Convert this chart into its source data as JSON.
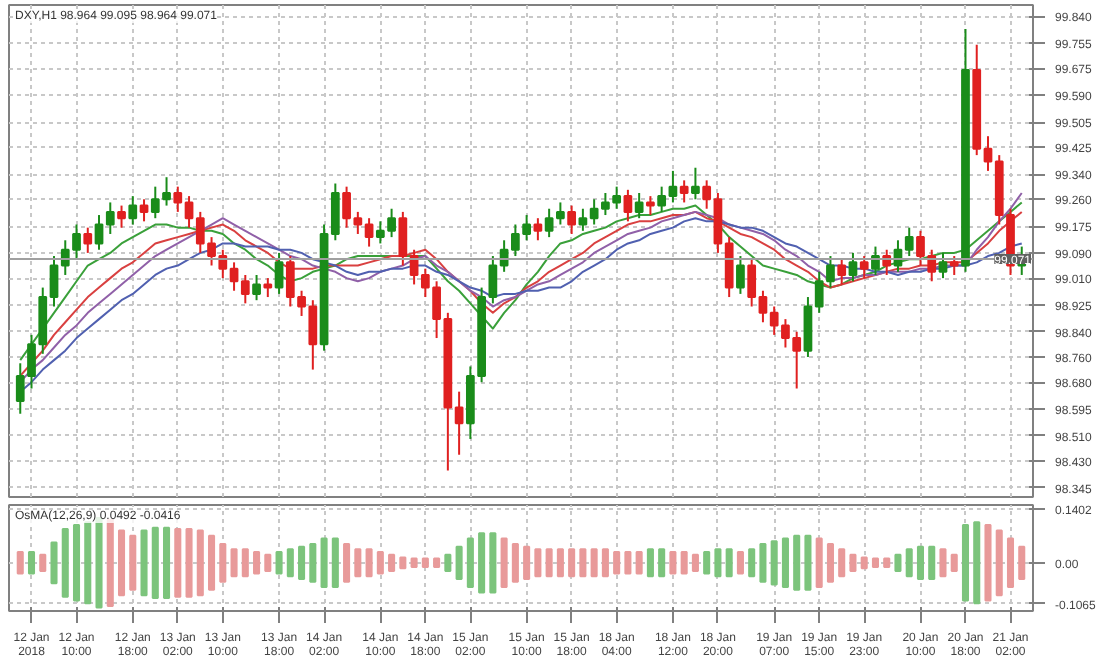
{
  "chart_data": [
    {
      "type": "candlestick",
      "title": "DXY,H1 98.964 99.095 98.964 99.071",
      "categories": [
        null,
        null,
        null,
        null,
        null,
        null,
        null,
        null,
        null,
        null,
        null,
        null,
        null,
        null,
        null,
        null,
        null,
        null,
        null,
        null,
        null,
        null,
        null,
        null,
        null,
        null,
        null,
        null,
        null,
        null,
        null,
        null,
        null,
        null,
        null,
        null,
        null,
        null,
        null,
        null,
        null,
        null,
        null,
        null,
        null,
        null,
        null,
        null,
        null,
        null,
        null,
        null,
        null,
        null,
        null,
        null,
        null,
        null,
        null,
        null,
        null,
        null,
        null,
        null,
        null,
        null,
        null,
        null,
        null,
        null,
        null,
        null,
        null,
        null,
        null,
        null,
        null,
        null,
        null,
        null,
        null,
        null,
        null,
        null,
        null,
        null,
        null,
        null,
        null,
        null
      ],
      "ohlc": [
        [
          98.62,
          98.74,
          98.58,
          98.7
        ],
        [
          98.7,
          98.83,
          98.66,
          98.8
        ],
        [
          98.8,
          98.98,
          98.77,
          98.95
        ],
        [
          98.95,
          99.08,
          98.92,
          99.05
        ],
        [
          99.05,
          99.13,
          99.02,
          99.1
        ],
        [
          99.1,
          99.18,
          99.07,
          99.15
        ],
        [
          99.15,
          99.17,
          99.09,
          99.12
        ],
        [
          99.12,
          99.21,
          99.1,
          99.18
        ],
        [
          99.18,
          99.25,
          99.15,
          99.22
        ],
        [
          99.22,
          99.24,
          99.17,
          99.2
        ],
        [
          99.2,
          99.27,
          99.18,
          99.24
        ],
        [
          99.24,
          99.26,
          99.19,
          99.22
        ],
        [
          99.22,
          99.3,
          99.2,
          99.26
        ],
        [
          99.26,
          99.33,
          99.24,
          99.28
        ],
        [
          99.28,
          99.3,
          99.22,
          99.25
        ],
        [
          99.25,
          99.27,
          99.17,
          99.2
        ],
        [
          99.2,
          99.22,
          99.09,
          99.12
        ],
        [
          99.12,
          99.14,
          99.05,
          99.08
        ],
        [
          99.08,
          99.1,
          99.01,
          99.04
        ],
        [
          99.04,
          99.06,
          98.97,
          99.0
        ],
        [
          99.0,
          99.02,
          98.93,
          98.96
        ],
        [
          98.96,
          99.02,
          98.94,
          98.99
        ],
        [
          98.99,
          99.01,
          98.95,
          98.98
        ],
        [
          98.98,
          99.09,
          98.96,
          99.06
        ],
        [
          99.06,
          99.08,
          98.92,
          98.95
        ],
        [
          98.95,
          98.97,
          98.89,
          98.92
        ],
        [
          98.92,
          98.94,
          98.72,
          98.8
        ],
        [
          98.8,
          99.18,
          98.78,
          99.15
        ],
        [
          99.15,
          99.31,
          99.13,
          99.28
        ],
        [
          99.28,
          99.3,
          99.17,
          99.2
        ],
        [
          99.2,
          99.22,
          99.15,
          99.18
        ],
        [
          99.18,
          99.2,
          99.11,
          99.14
        ],
        [
          99.14,
          99.19,
          99.12,
          99.16
        ],
        [
          99.16,
          99.23,
          99.14,
          99.2
        ],
        [
          99.2,
          99.22,
          99.05,
          99.08
        ],
        [
          99.08,
          99.1,
          98.99,
          99.02
        ],
        [
          99.02,
          99.04,
          98.95,
          98.98
        ],
        [
          98.98,
          99.0,
          98.82,
          98.88
        ],
        [
          98.88,
          98.9,
          98.4,
          98.6
        ],
        [
          98.6,
          98.65,
          98.45,
          98.55
        ],
        [
          98.55,
          98.73,
          98.5,
          98.7
        ],
        [
          98.7,
          98.98,
          98.68,
          98.95
        ],
        [
          98.95,
          99.08,
          98.93,
          99.05
        ],
        [
          99.05,
          99.13,
          99.03,
          99.1
        ],
        [
          99.1,
          99.18,
          99.08,
          99.15
        ],
        [
          99.15,
          99.21,
          99.13,
          99.18
        ],
        [
          99.18,
          99.2,
          99.13,
          99.16
        ],
        [
          99.16,
          99.23,
          99.14,
          99.2
        ],
        [
          99.2,
          99.25,
          99.18,
          99.22
        ],
        [
          99.22,
          99.24,
          99.15,
          99.18
        ],
        [
          99.18,
          99.23,
          99.16,
          99.2
        ],
        [
          99.2,
          99.26,
          99.18,
          99.23
        ],
        [
          99.23,
          99.28,
          99.21,
          99.25
        ],
        [
          99.25,
          99.3,
          99.23,
          99.27
        ],
        [
          99.27,
          99.29,
          99.19,
          99.22
        ],
        [
          99.22,
          99.28,
          99.2,
          99.25
        ],
        [
          99.25,
          99.27,
          99.21,
          99.24
        ],
        [
          99.24,
          99.3,
          99.22,
          99.27
        ],
        [
          99.27,
          99.35,
          99.25,
          99.3
        ],
        [
          99.3,
          99.32,
          99.25,
          99.28
        ],
        [
          99.28,
          99.36,
          99.26,
          99.3
        ],
        [
          99.3,
          99.32,
          99.23,
          99.26
        ],
        [
          99.26,
          99.28,
          99.09,
          99.12
        ],
        [
          99.12,
          99.14,
          98.95,
          98.98
        ],
        [
          98.98,
          99.08,
          98.96,
          99.05
        ],
        [
          99.05,
          99.07,
          98.92,
          98.95
        ],
        [
          98.95,
          98.97,
          98.87,
          98.9
        ],
        [
          98.9,
          98.92,
          98.83,
          98.86
        ],
        [
          98.86,
          98.88,
          98.79,
          98.82
        ],
        [
          98.82,
          98.84,
          98.66,
          98.78
        ],
        [
          98.78,
          98.95,
          98.76,
          98.92
        ],
        [
          98.92,
          99.03,
          98.9,
          99.0
        ],
        [
          99.0,
          99.08,
          98.98,
          99.05
        ],
        [
          99.05,
          99.07,
          98.99,
          99.02
        ],
        [
          99.02,
          99.09,
          99.0,
          99.06
        ],
        [
          99.06,
          99.08,
          99.01,
          99.04
        ],
        [
          99.04,
          99.11,
          99.02,
          99.08
        ],
        [
          99.08,
          99.1,
          99.02,
          99.05
        ],
        [
          99.05,
          99.13,
          99.03,
          99.1
        ],
        [
          99.1,
          99.17,
          99.08,
          99.14
        ],
        [
          99.14,
          99.16,
          99.05,
          99.08
        ],
        [
          99.08,
          99.1,
          99.0,
          99.03
        ],
        [
          99.03,
          99.09,
          99.01,
          99.06
        ],
        [
          99.06,
          99.08,
          99.02,
          99.05
        ],
        [
          99.05,
          99.8,
          99.03,
          99.67
        ],
        [
          99.67,
          99.75,
          99.4,
          99.42
        ],
        [
          99.42,
          99.46,
          99.35,
          99.38
        ],
        [
          99.38,
          99.4,
          99.18,
          99.21
        ],
        [
          99.21,
          99.23,
          99.02,
          99.05
        ],
        [
          99.05,
          99.11,
          99.02,
          99.08
        ]
      ],
      "series": [
        {
          "type": "line",
          "color": "#3aa03a",
          "values": [
            98.75,
            98.8,
            98.85,
            98.9,
            98.95,
            99.0,
            99.05,
            99.07,
            99.09,
            99.12,
            99.14,
            99.16,
            99.18,
            99.18,
            99.17,
            99.17,
            99.16,
            99.16,
            99.15,
            99.12,
            99.1,
            99.07,
            99.05,
            99.02,
            99.0,
            99.01,
            99.03,
            99.04,
            99.05,
            99.07,
            99.08,
            99.08,
            99.08,
            99.08,
            99.08,
            99.08,
            99.08,
            99.04,
            99.0,
            98.97,
            98.93,
            98.89,
            98.85,
            98.9,
            98.94,
            98.99,
            99.03,
            99.08,
            99.12,
            99.13,
            99.15,
            99.16,
            99.17,
            99.19,
            99.2,
            99.21,
            99.21,
            99.22,
            99.23,
            99.23,
            99.24,
            99.21,
            99.18,
            99.14,
            99.11,
            99.08,
            99.05,
            99.04,
            99.03,
            99.02,
            99.0,
            98.99,
            98.98,
            98.99,
            99.01,
            99.02,
            99.03,
            99.05,
            99.06,
            99.07,
            99.07,
            99.08,
            99.09,
            99.09,
            99.1,
            99.13,
            99.16,
            99.19,
            99.22,
            99.25
          ]
        },
        {
          "type": "line",
          "color": "#d94040",
          "values": [
            98.7,
            98.74,
            98.78,
            98.83,
            98.87,
            98.91,
            98.95,
            98.98,
            99.01,
            99.04,
            99.06,
            99.09,
            99.12,
            99.13,
            99.14,
            99.15,
            99.16,
            99.17,
            99.18,
            99.16,
            99.13,
            99.11,
            99.09,
            99.06,
            99.04,
            99.04,
            99.04,
            99.05,
            99.05,
            99.05,
            99.05,
            99.06,
            99.07,
            99.08,
            99.08,
            99.09,
            99.1,
            99.07,
            99.03,
            99.0,
            98.97,
            98.93,
            98.9,
            98.93,
            98.95,
            98.98,
            99.0,
            99.03,
            99.05,
            99.07,
            99.09,
            99.12,
            99.14,
            99.16,
            99.18,
            99.19,
            99.19,
            99.2,
            99.21,
            99.21,
            99.22,
            99.2,
            99.19,
            99.17,
            99.15,
            99.14,
            99.12,
            99.1,
            99.07,
            99.05,
            99.03,
            99.0,
            98.98,
            98.99,
            99.0,
            99.01,
            99.02,
            99.03,
            99.04,
            99.04,
            99.05,
            99.05,
            99.06,
            99.06,
            99.06,
            99.09,
            99.12,
            99.16,
            99.19,
            99.22
          ]
        },
        {
          "type": "line",
          "color": "#9060a8",
          "values": [
            98.68,
            98.72,
            98.75,
            98.79,
            98.83,
            98.86,
            98.9,
            98.93,
            98.96,
            98.99,
            99.02,
            99.05,
            99.08,
            99.1,
            99.12,
            99.14,
            99.16,
            99.18,
            99.2,
            99.18,
            99.16,
            99.14,
            99.12,
            99.1,
            99.08,
            99.07,
            99.05,
            99.04,
            99.03,
            99.01,
            99.0,
            99.01,
            99.03,
            99.04,
            99.05,
            99.07,
            99.08,
            99.05,
            99.03,
            99.0,
            98.97,
            98.95,
            98.92,
            98.94,
            98.95,
            98.97,
            98.99,
            99.0,
            99.02,
            99.04,
            99.06,
            99.09,
            99.11,
            99.13,
            99.15,
            99.16,
            99.17,
            99.19,
            99.2,
            99.21,
            99.22,
            99.21,
            99.2,
            99.18,
            99.17,
            99.16,
            99.15,
            99.13,
            99.1,
            99.08,
            99.05,
            99.03,
            99.0,
            99.01,
            99.01,
            99.02,
            99.02,
            99.03,
            99.03,
            99.03,
            99.04,
            99.04,
            99.05,
            99.05,
            99.05,
            99.1,
            99.14,
            99.19,
            99.23,
            99.28
          ]
        },
        {
          "type": "line",
          "color": "#5060b0",
          "values": [
            98.65,
            98.68,
            98.72,
            98.75,
            98.78,
            98.82,
            98.85,
            98.88,
            98.91,
            98.94,
            98.96,
            98.99,
            99.02,
            99.04,
            99.05,
            99.07,
            99.09,
            99.1,
            99.12,
            99.12,
            99.11,
            99.11,
            99.11,
            99.1,
            99.1,
            99.09,
            99.07,
            99.06,
            99.05,
            99.03,
            99.02,
            99.03,
            99.03,
            99.04,
            99.04,
            99.05,
            99.05,
            99.03,
            99.02,
            99.0,
            98.98,
            98.97,
            98.95,
            98.96,
            98.96,
            98.97,
            98.97,
            98.98,
            98.98,
            99.0,
            99.03,
            99.05,
            99.07,
            99.1,
            99.12,
            99.13,
            99.15,
            99.16,
            99.17,
            99.19,
            99.2,
            99.19,
            99.19,
            99.18,
            99.17,
            99.17,
            99.16,
            99.14,
            99.12,
            99.11,
            99.09,
            99.07,
            99.05,
            99.05,
            99.04,
            99.04,
            99.03,
            99.03,
            99.02,
            99.03,
            99.03,
            99.04,
            99.04,
            99.05,
            99.05,
            99.06,
            99.08,
            99.09,
            99.11,
            99.12
          ]
        }
      ],
      "ylim": [
        98.316,
        99.876
      ],
      "yticks": [
        {
          "value": 99.84,
          "label": "99.840"
        },
        {
          "value": 99.755,
          "label": "99.755"
        },
        {
          "value": 99.675,
          "label": "99.675"
        },
        {
          "value": 99.59,
          "label": "99.590"
        },
        {
          "value": 99.505,
          "label": "99.505"
        },
        {
          "value": 99.425,
          "label": "99.425"
        },
        {
          "value": 99.34,
          "label": "99.340"
        },
        {
          "value": 99.26,
          "label": "99.260"
        },
        {
          "value": 99.175,
          "label": "99.175"
        },
        {
          "value": 99.09,
          "label": "99.090"
        },
        {
          "value": 99.01,
          "label": "99.010"
        },
        {
          "value": 98.925,
          "label": "98.925"
        },
        {
          "value": 98.84,
          "label": "98.840"
        },
        {
          "value": 98.76,
          "label": "98.760"
        },
        {
          "value": 98.68,
          "label": "98.680"
        },
        {
          "value": 98.595,
          "label": "98.595"
        },
        {
          "value": 98.51,
          "label": "98.510"
        },
        {
          "value": 98.43,
          "label": "98.430"
        },
        {
          "value": 98.345,
          "label": "98.345"
        }
      ],
      "ref_lines": [
        {
          "axis": "y",
          "value": 99.071,
          "label": "99.071",
          "color": "#a0a0a0"
        }
      ],
      "grid": true,
      "tick_labels": "y"
    },
    {
      "type": "bar",
      "title": "OsMA(12,26,9) 0.0492 -0.0416",
      "categories": [
        null,
        "12 Jan 2018",
        null,
        null,
        null,
        "12 Jan 10:00",
        null,
        null,
        null,
        null,
        "12 Jan 18:00",
        null,
        null,
        null,
        "13 Jan 02:00",
        null,
        null,
        null,
        "13 Jan 10:00",
        null,
        null,
        null,
        null,
        "13 Jan 18:00",
        null,
        null,
        null,
        "14 Jan 02:00",
        null,
        null,
        null,
        null,
        "14 Jan 10:00",
        null,
        null,
        null,
        "14 Jan 18:00",
        null,
        null,
        null,
        "15 Jan 02:00",
        null,
        null,
        null,
        null,
        "15 Jan 10:00",
        null,
        null,
        null,
        "15 Jan 18:00",
        null,
        null,
        null,
        "18 Jan 04:00",
        null,
        null,
        null,
        null,
        "18 Jan 12:00",
        null,
        null,
        null,
        "18 Jan 20:00",
        null,
        null,
        null,
        null,
        "19 Jan 07:00",
        null,
        null,
        null,
        "19 Jan 15:00",
        null,
        null,
        null,
        "19 Jan 23:00",
        null,
        null,
        null,
        null,
        "20 Jan 10:00",
        null,
        null,
        null,
        "20 Jan 18:00",
        null,
        null,
        null,
        "21 Jan 02:00",
        null
      ],
      "base": [
        -0.028,
        -0.028,
        -0.021,
        -0.053,
        -0.088,
        -0.098,
        -0.105,
        -0.116,
        -0.112,
        -0.084,
        -0.07,
        -0.084,
        -0.091,
        -0.091,
        -0.088,
        -0.088,
        -0.084,
        -0.07,
        -0.049,
        -0.035,
        -0.035,
        -0.028,
        -0.021,
        -0.028,
        -0.035,
        -0.042,
        -0.049,
        -0.063,
        -0.063,
        -0.049,
        -0.035,
        -0.035,
        -0.028,
        -0.021,
        -0.014,
        -0.011,
        -0.011,
        -0.011,
        -0.021,
        -0.042,
        -0.063,
        -0.077,
        -0.077,
        -0.063,
        -0.049,
        -0.042,
        -0.035,
        -0.035,
        -0.035,
        -0.035,
        -0.035,
        -0.035,
        -0.035,
        -0.028,
        -0.028,
        -0.028,
        -0.035,
        -0.035,
        -0.028,
        -0.028,
        -0.021,
        -0.028,
        -0.035,
        -0.035,
        -0.028,
        -0.035,
        -0.049,
        -0.056,
        -0.063,
        -0.07,
        -0.07,
        -0.063,
        -0.049,
        -0.035,
        -0.021,
        -0.014,
        -0.011,
        -0.011,
        -0.021,
        -0.035,
        -0.042,
        -0.042,
        -0.035,
        -0.021,
        -0.098,
        -0.105,
        -0.098,
        -0.084,
        -0.063,
        -0.042
      ],
      "values": [
        0.056,
        0.056,
        0.042,
        0.106,
        0.176,
        0.196,
        0.21,
        0.232,
        0.224,
        0.168,
        0.14,
        0.168,
        0.182,
        0.182,
        0.176,
        0.176,
        0.168,
        0.14,
        0.098,
        0.07,
        0.07,
        0.056,
        0.042,
        0.056,
        0.07,
        0.084,
        0.098,
        0.126,
        0.126,
        0.098,
        0.07,
        0.07,
        0.056,
        0.042,
        0.028,
        0.022,
        0.022,
        0.022,
        0.042,
        0.084,
        0.126,
        0.154,
        0.154,
        0.126,
        0.098,
        0.084,
        0.07,
        0.07,
        0.07,
        0.07,
        0.07,
        0.07,
        0.07,
        0.056,
        0.056,
        0.056,
        0.07,
        0.07,
        0.056,
        0.056,
        0.042,
        0.056,
        0.07,
        0.07,
        0.056,
        0.07,
        0.098,
        0.112,
        0.126,
        0.14,
        0.14,
        0.126,
        0.098,
        0.07,
        0.042,
        0.028,
        0.022,
        0.022,
        0.042,
        0.07,
        0.084,
        0.084,
        0.07,
        0.042,
        0.196,
        0.21,
        0.196,
        0.168,
        0.126,
        0.084
      ],
      "colors": [
        "#e89a9a",
        "#7cc47c",
        "#e89a9a",
        "#7cc47c",
        "#7cc47c",
        "#7cc47c",
        "#7cc47c",
        "#7cc47c",
        "#e89a9a",
        "#e89a9a",
        "#e89a9a",
        "#7cc47c",
        "#7cc47c",
        "#7cc47c",
        "#e89a9a",
        "#e89a9a",
        "#e89a9a",
        "#e89a9a",
        "#e89a9a",
        "#e89a9a",
        "#e89a9a",
        "#e89a9a",
        "#e89a9a",
        "#7cc47c",
        "#7cc47c",
        "#7cc47c",
        "#7cc47c",
        "#7cc47c",
        "#7cc47c",
        "#e89a9a",
        "#e89a9a",
        "#e89a9a",
        "#e89a9a",
        "#e89a9a",
        "#e89a9a",
        "#e89a9a",
        "#e89a9a",
        "#e89a9a",
        "#7cc47c",
        "#7cc47c",
        "#7cc47c",
        "#7cc47c",
        "#7cc47c",
        "#e89a9a",
        "#e89a9a",
        "#e89a9a",
        "#e89a9a",
        "#e89a9a",
        "#e89a9a",
        "#e89a9a",
        "#e89a9a",
        "#e89a9a",
        "#e89a9a",
        "#e89a9a",
        "#e89a9a",
        "#e89a9a",
        "#7cc47c",
        "#7cc47c",
        "#e89a9a",
        "#e89a9a",
        "#e89a9a",
        "#7cc47c",
        "#7cc47c",
        "#7cc47c",
        "#e89a9a",
        "#7cc47c",
        "#7cc47c",
        "#7cc47c",
        "#7cc47c",
        "#7cc47c",
        "#7cc47c",
        "#e89a9a",
        "#e89a9a",
        "#e89a9a",
        "#e89a9a",
        "#e89a9a",
        "#e89a9a",
        "#e89a9a",
        "#7cc47c",
        "#7cc47c",
        "#7cc47c",
        "#7cc47c",
        "#e89a9a",
        "#e89a9a",
        "#7cc47c",
        "#7cc47c",
        "#e89a9a",
        "#e89a9a",
        "#e89a9a",
        "#e89a9a"
      ],
      "ylim": [
        -0.125,
        0.15
      ],
      "yticks": [
        {
          "value": 0.1402,
          "label": "0.1402"
        },
        {
          "value": 0,
          "label": "0.00"
        },
        {
          "value": -0.1065,
          "label": "-0.1065"
        }
      ],
      "grid": true
    }
  ]
}
